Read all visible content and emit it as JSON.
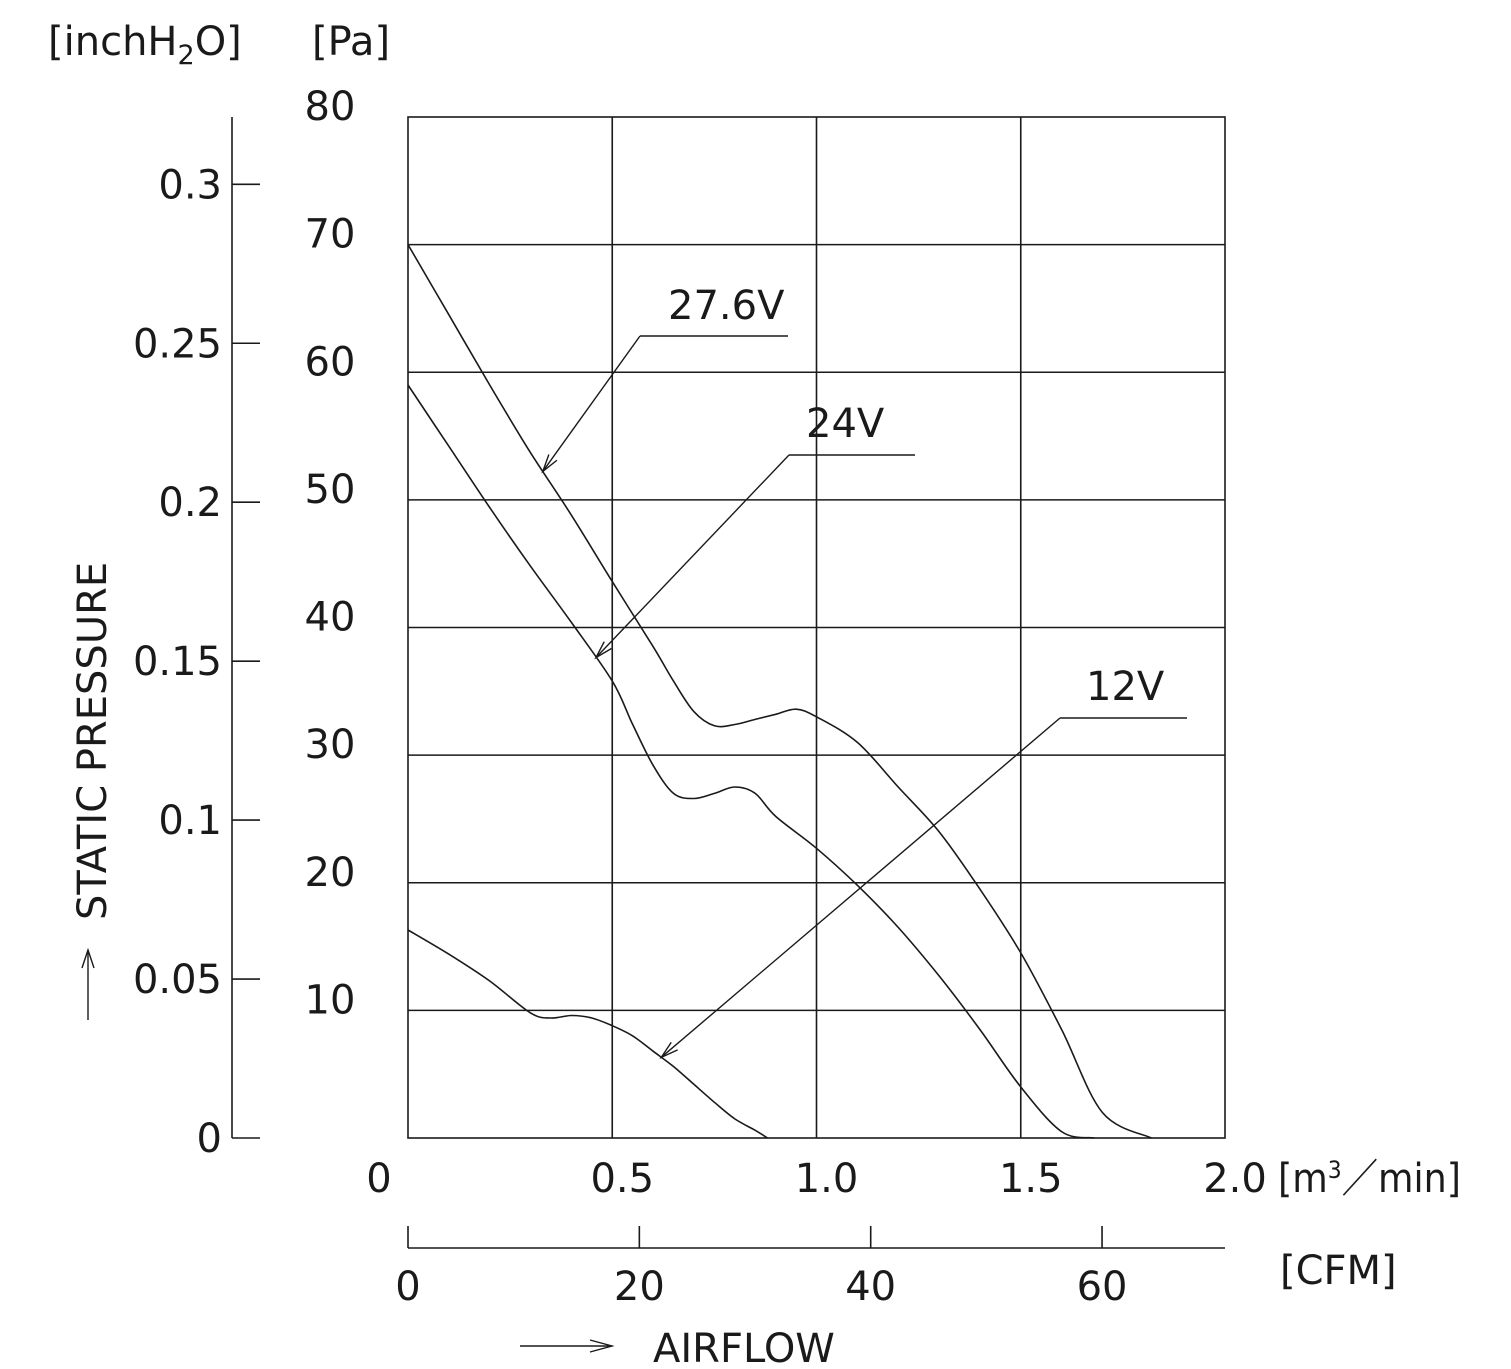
{
  "chart_data": {
    "type": "line",
    "x_unit_label_prefix": "[m",
    "x_unit_label_sup": "3",
    "x_unit_label_suffix": "／min]",
    "x_ticks": [
      "0",
      "0.5",
      "1.0",
      "1.5",
      "2.0"
    ],
    "xlim": [
      0,
      2.0
    ],
    "cfm_unit_label": "[CFM]",
    "cfm_ticks": [
      "0",
      "20",
      "40",
      "60"
    ],
    "cfm_tick_values": [
      0,
      20,
      40,
      60
    ],
    "cfm_per_m3min": 35.3147,
    "xlabel": "AIRFLOW",
    "y_unit_label": "[Pa]",
    "y_ticks": [
      "80",
      "70",
      "60",
      "50",
      "40",
      "30",
      "20",
      "10"
    ],
    "ylim": [
      0,
      80
    ],
    "inch_unit_label_prefix": "[inchH",
    "inch_unit_label_sub": "2",
    "inch_unit_label_suffix": "O]",
    "inch_ticks": [
      "0.3",
      "0.25",
      "0.2",
      "0.15",
      "0.1",
      "0.05",
      "0"
    ],
    "inch_tick_values": [
      0.3,
      0.25,
      0.2,
      0.15,
      0.1,
      0.05,
      0
    ],
    "pa_per_inch": 249.089,
    "ylabel": "STATIC PRESSURE",
    "x_origin_label": "0",
    "grid": true,
    "series": [
      {
        "name": "27.6V",
        "x": [
          0,
          0.1,
          0.2,
          0.3,
          0.4,
          0.5,
          0.6,
          0.65,
          0.7,
          0.75,
          0.8,
          0.85,
          0.9,
          0.95,
          1.0,
          1.1,
          1.2,
          1.3,
          1.4,
          1.5,
          1.6,
          1.7,
          1.82
        ],
        "y": [
          70,
          64.5,
          59,
          53.7,
          48.8,
          43.6,
          38.5,
          35.8,
          33.4,
          32.3,
          32.4,
          32.8,
          33.2,
          33.6,
          33.0,
          31.0,
          27.5,
          24.0,
          19.5,
          14.5,
          8.5,
          2.0,
          0
        ]
      },
      {
        "name": "24V",
        "x": [
          0,
          0.1,
          0.2,
          0.3,
          0.4,
          0.5,
          0.55,
          0.6,
          0.65,
          0.7,
          0.75,
          0.8,
          0.85,
          0.9,
          1.0,
          1.1,
          1.2,
          1.3,
          1.4,
          1.5,
          1.6,
          1.68
        ],
        "y": [
          59,
          54.2,
          49.4,
          44.8,
          40.4,
          35.8,
          32.4,
          29.2,
          27.0,
          26.6,
          27.0,
          27.5,
          27.0,
          25.2,
          22.7,
          19.8,
          16.5,
          12.7,
          8.5,
          4.0,
          0.5,
          0
        ]
      },
      {
        "name": "12V",
        "x": [
          0,
          0.1,
          0.2,
          0.3,
          0.35,
          0.4,
          0.45,
          0.5,
          0.55,
          0.6,
          0.65,
          0.7,
          0.75,
          0.8,
          0.85,
          0.88
        ],
        "y": [
          16.3,
          14.4,
          12.3,
          9.8,
          9.4,
          9.6,
          9.4,
          8.8,
          8.0,
          6.8,
          5.6,
          4.2,
          2.8,
          1.5,
          0.6,
          0
        ]
      }
    ],
    "annotations": [
      {
        "text": "27.6V",
        "series": "27.6V"
      },
      {
        "text": "24V",
        "series": "24V"
      },
      {
        "text": "12V",
        "series": "12V"
      }
    ]
  }
}
